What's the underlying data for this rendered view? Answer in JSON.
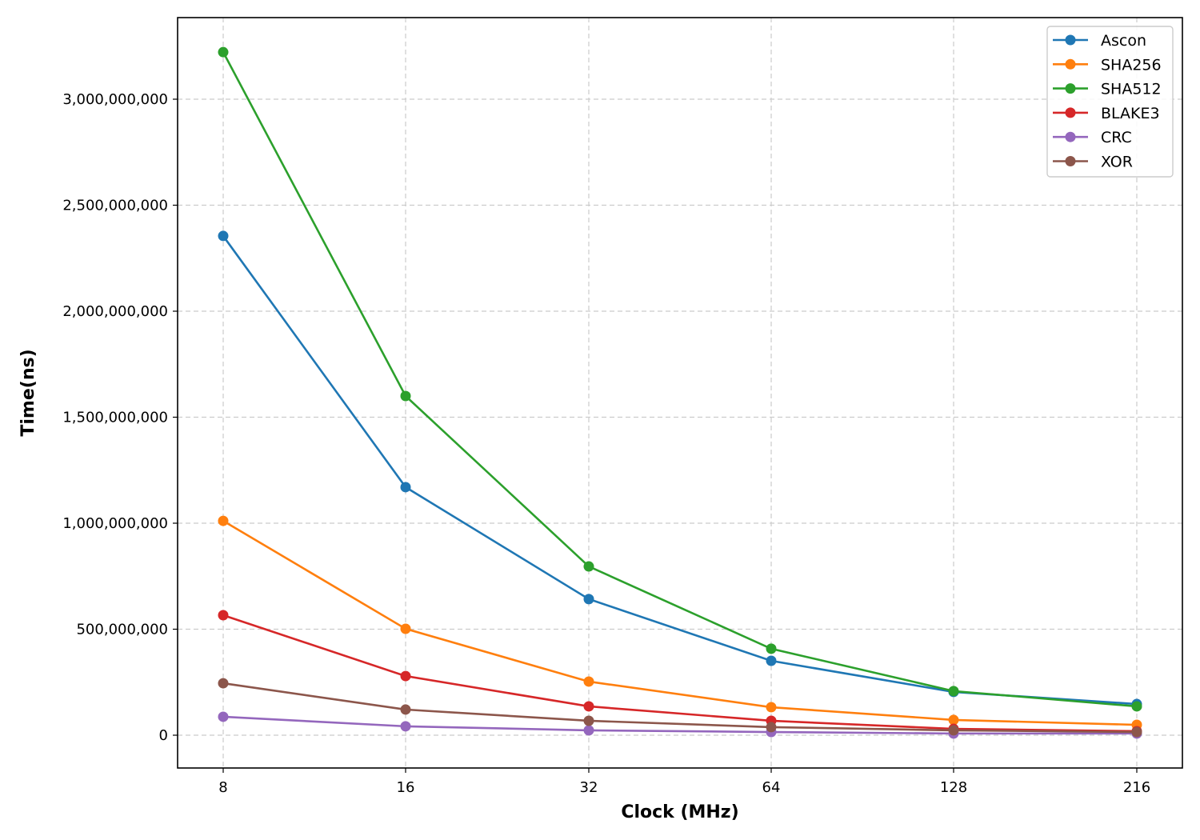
{
  "chart_data": {
    "type": "line",
    "title": "",
    "xlabel": "Clock (MHz)",
    "ylabel": "Time(ns)",
    "categories": [
      "8",
      "16",
      "32",
      "64",
      "128",
      "216"
    ],
    "x_scale": "categorical (log2-like spacing, evenly spaced ticks)",
    "ylim": [
      -160000000,
      3380000000
    ],
    "yticks": [
      0,
      500000000,
      1000000000,
      1500000000,
      2000000000,
      2500000000,
      3000000000
    ],
    "ytick_labels": [
      "0",
      "500,000,000",
      "1,000,000,000",
      "1,500,000,000",
      "2,000,000,000",
      "2,500,000,000",
      "3,000,000,000"
    ],
    "grid": true,
    "legend_position": "upper right",
    "series": [
      {
        "name": "Ascon",
        "color": "#1f77b4",
        "values": [
          2355000000,
          1170000000,
          642000000,
          351000000,
          204000000,
          147000000
        ]
      },
      {
        "name": "SHA256",
        "color": "#ff7f0e",
        "values": [
          1011000000,
          502000000,
          253000000,
          132000000,
          72000000,
          49000000
        ]
      },
      {
        "name": "SHA512",
        "color": "#2ca02c",
        "values": [
          3222000000,
          1600000000,
          796000000,
          408000000,
          208000000,
          136000000
        ]
      },
      {
        "name": "BLAKE3",
        "color": "#d62728",
        "values": [
          566000000,
          279000000,
          136000000,
          68000000,
          30000000,
          19000000
        ]
      },
      {
        "name": "CRC",
        "color": "#9467bd",
        "values": [
          87000000,
          42000000,
          23000000,
          15000000,
          8000000,
          8000000
        ]
      },
      {
        "name": "XOR",
        "color": "#8c564b",
        "values": [
          245000000,
          121000000,
          68000000,
          38000000,
          23000000,
          15000000
        ]
      }
    ]
  }
}
